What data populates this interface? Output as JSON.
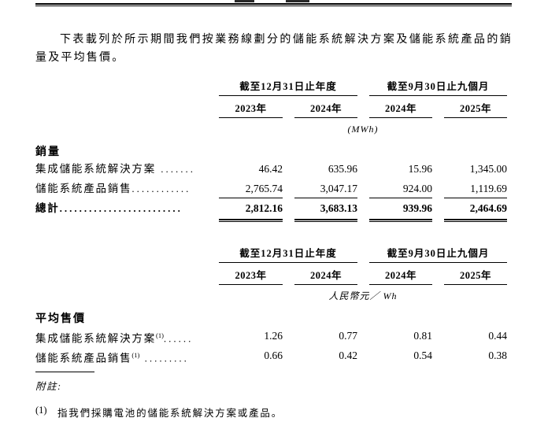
{
  "colors": {
    "text": "#000000",
    "rule": "#000000",
    "background": "#ffffff"
  },
  "intro_paragraph": "下表載列於所示期間我們按業務線劃分的儲能系統解決方案及儲能系統產品的銷量及平均售價。",
  "tables": [
    {
      "group_headers": [
        "截至12月31日止年度",
        "截至9月30日止九個月"
      ],
      "year_headers": [
        "2023年",
        "2024年",
        "2024年",
        "2025年"
      ],
      "unit": "(MWh)",
      "section_label": "銷量",
      "rows": [
        {
          "label": "集成儲能系統解決方案",
          "dots": " .......",
          "values": [
            "46.42",
            "635.96",
            "15.96",
            "1,345.00"
          ]
        },
        {
          "label": "儲能系統產品銷售",
          "dots": "............",
          "values": [
            "2,765.74",
            "3,047.17",
            "924.00",
            "1,119.69"
          ]
        },
        {
          "label": "總計",
          "dots": ".........................",
          "values": [
            "2,812.16",
            "3,683.13",
            "939.96",
            "2,464.69"
          ]
        }
      ]
    },
    {
      "group_headers": [
        "截至12月31日止年度",
        "截至9月30日止九個月"
      ],
      "year_headers": [
        "2023年",
        "2024年",
        "2024年",
        "2025年"
      ],
      "unit": "人民幣元／ Wh",
      "section_label": "平均售價",
      "rows": [
        {
          "label": "集成儲能系統解決方案",
          "sup": "(1)",
          "dots": "......",
          "values": [
            "1.26",
            "0.77",
            "0.81",
            "0.44"
          ]
        },
        {
          "label": "儲能系統產品銷售",
          "sup": "(1)",
          "dots": " .........",
          "values": [
            "0.66",
            "0.42",
            "0.54",
            "0.38"
          ]
        }
      ]
    }
  ],
  "footnotes": {
    "label": "附註:",
    "items": [
      {
        "marker": "(1)",
        "text": "指我們採購電池的儲能系統解決方案或產品。"
      }
    ]
  }
}
